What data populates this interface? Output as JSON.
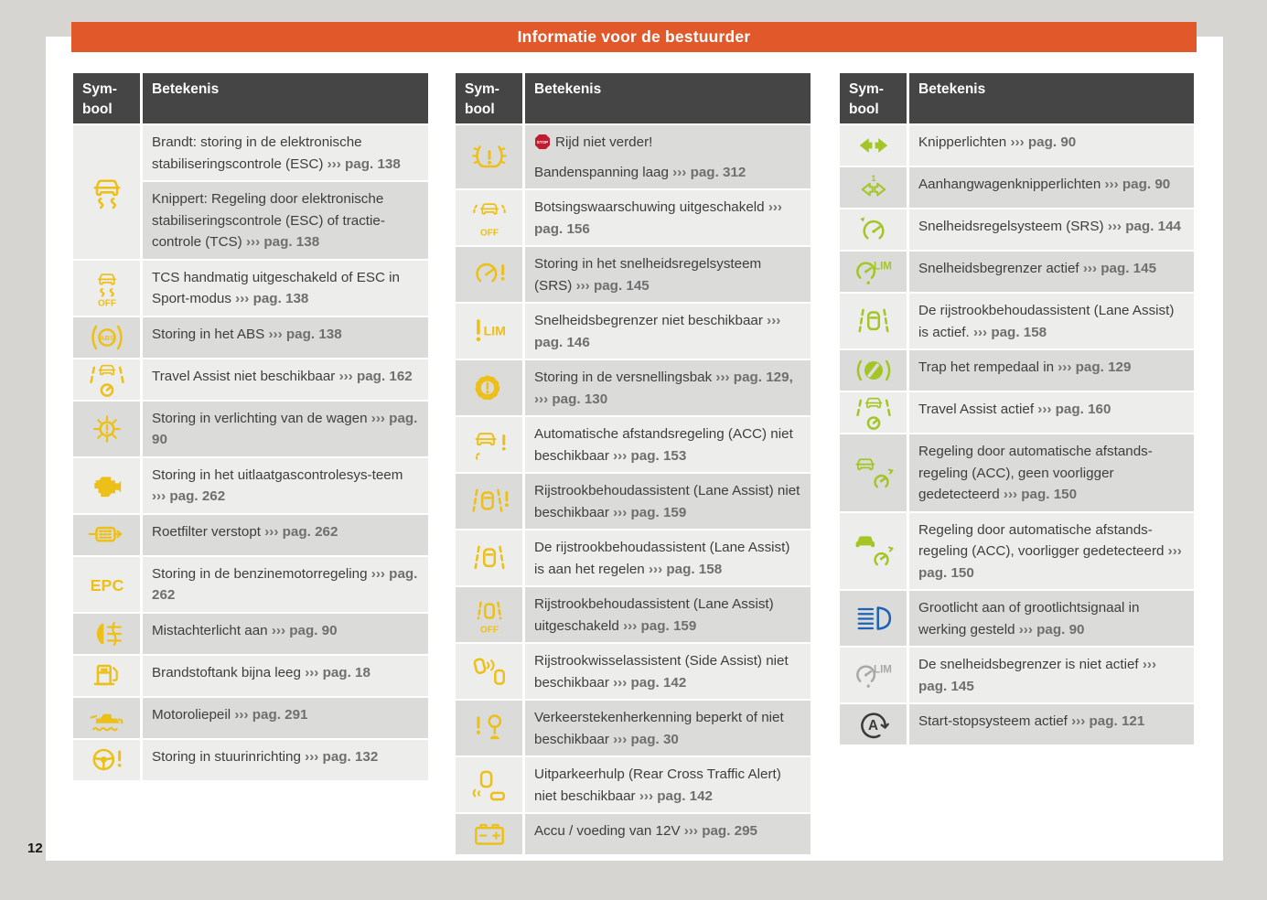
{
  "page_number": "12",
  "stop_badge": "STOP",
  "header": {
    "title": "Informatie voor de bestuurder"
  },
  "table_header": {
    "symbol": "Sym-bool",
    "meaning": "Betekenis"
  },
  "colors": {
    "orange": "#E1592B",
    "header_dark": "#454545",
    "row_light": "#EDEDEB",
    "row_dark": "#DBDBD9",
    "yellow": "#EDC019",
    "green": "#A3C626",
    "blue": "#1C63B7",
    "gray": "#A8A8A6",
    "dark": "#3A3A3A",
    "stop_red": "#C21B2F",
    "text": "#3E3E3E",
    "ref": "#6F6F6F",
    "page_bg": "#D6D5D2"
  },
  "columns": [
    {
      "rows": [
        {
          "icon": "esc-warning-icon",
          "color": "yellow",
          "shade": "l",
          "cells": [
            {
              "shade": "l",
              "parts": [
                {
                  "t": "Brandt: storing in de elektronische stabiliseringscontrole (ESC) "
                },
                {
                  "t": "››› pag. 138",
                  "b": 1
                }
              ]
            },
            {
              "shade": "d",
              "parts": [
                {
                  "t": "Knippert: Regeling door elektronische stabiliseringscontrole (ESC) of tractie-controle (TCS) "
                },
                {
                  "t": "››› pag. 138",
                  "b": 1
                }
              ]
            }
          ]
        },
        {
          "icon": "esc-off-icon",
          "color": "yellow",
          "shade": "l",
          "cells": [
            {
              "shade": "l",
              "parts": [
                {
                  "t": "TCS handmatig uitgeschakeld of ESC in Sport-modus "
                },
                {
                  "t": "››› pag. 138",
                  "b": 1
                }
              ]
            }
          ]
        },
        {
          "icon": "abs-warning-icon",
          "color": "yellow",
          "shade": "d",
          "cells": [
            {
              "shade": "d",
              "parts": [
                {
                  "t": "Storing in het ABS "
                },
                {
                  "t": "››› pag. 138",
                  "b": 1
                }
              ]
            }
          ]
        },
        {
          "icon": "travel-assist-warning-icon",
          "color": "yellow",
          "shade": "l",
          "cells": [
            {
              "shade": "l",
              "parts": [
                {
                  "t": "Travel Assist niet beschikbaar "
                },
                {
                  "t": "››› pag. 162",
                  "b": 1
                }
              ]
            }
          ]
        },
        {
          "icon": "light-fault-icon",
          "color": "yellow",
          "shade": "d",
          "cells": [
            {
              "shade": "d",
              "parts": [
                {
                  "t": "Storing in verlichting van de wagen "
                },
                {
                  "t": "››› pag. 90",
                  "b": 1
                }
              ]
            }
          ]
        },
        {
          "icon": "check-engine-icon",
          "color": "yellow",
          "shade": "l",
          "cells": [
            {
              "shade": "l",
              "parts": [
                {
                  "t": "Storing in het uitlaatgascontrolesys-teem "
                },
                {
                  "t": "››› pag. 262",
                  "b": 1
                }
              ]
            }
          ]
        },
        {
          "icon": "particulate-filter-icon",
          "color": "yellow",
          "shade": "d",
          "cells": [
            {
              "shade": "d",
              "parts": [
                {
                  "t": "Roetfilter verstopt "
                },
                {
                  "t": "››› pag. 262",
                  "b": 1
                }
              ]
            }
          ]
        },
        {
          "icon": "epc-icon",
          "color": "yellow",
          "shade": "l",
          "cells": [
            {
              "shade": "l",
              "parts": [
                {
                  "t": "Storing in de benzinemotorregeling "
                },
                {
                  "t": "››› pag. 262",
                  "b": 1
                }
              ]
            }
          ]
        },
        {
          "icon": "rear-fog-light-icon",
          "color": "yellow",
          "shade": "d",
          "cells": [
            {
              "shade": "d",
              "parts": [
                {
                  "t": "Mistachterlicht aan "
                },
                {
                  "t": "››› pag. 90",
                  "b": 1
                }
              ]
            }
          ]
        },
        {
          "icon": "fuel-low-icon",
          "color": "yellow",
          "shade": "l",
          "cells": [
            {
              "shade": "l",
              "parts": [
                {
                  "t": "Brandstoftank bijna leeg "
                },
                {
                  "t": "››› pag. 18",
                  "b": 1
                }
              ]
            }
          ]
        },
        {
          "icon": "engine-oil-icon",
          "color": "yellow",
          "shade": "d",
          "cells": [
            {
              "shade": "d",
              "parts": [
                {
                  "t": "Motoroliepeil "
                },
                {
                  "t": "››› pag. 291",
                  "b": 1
                }
              ]
            }
          ]
        },
        {
          "icon": "steering-fault-icon",
          "color": "yellow",
          "shade": "l",
          "cells": [
            {
              "shade": "l",
              "parts": [
                {
                  "t": "Storing in stuurinrichting "
                },
                {
                  "t": "››› pag. 132",
                  "b": 1
                }
              ]
            }
          ]
        }
      ]
    },
    {
      "rows": [
        {
          "icon": "tpms-icon",
          "color": "yellow",
          "shade": "d",
          "cells": [
            {
              "shade": "d",
              "parts": [
                {
                  "stop": 1
                },
                {
                  "t": "Rijd niet verder!"
                },
                {
                  "nl": 1
                },
                {
                  "t": "Bandenspanning laag "
                },
                {
                  "t": "››› pag. 312",
                  "b": 1
                }
              ]
            }
          ]
        },
        {
          "icon": "collision-warning-off-icon",
          "color": "yellow",
          "shade": "l",
          "cells": [
            {
              "shade": "l",
              "parts": [
                {
                  "t": "Botsingswaarschuwing uitgeschakeld "
                },
                {
                  "t": "››› pag. 156",
                  "b": 1
                }
              ]
            }
          ]
        },
        {
          "icon": "cruise-fault-icon",
          "color": "yellow",
          "shade": "d",
          "cells": [
            {
              "shade": "d",
              "parts": [
                {
                  "t": "Storing in het snelheidsregelsysteem (SRS) "
                },
                {
                  "t": "››› pag. 145",
                  "b": 1
                }
              ]
            }
          ]
        },
        {
          "icon": "speed-limiter-warning-icon",
          "color": "yellow",
          "shade": "l",
          "cells": [
            {
              "shade": "l",
              "parts": [
                {
                  "t": "Snelheidsbegrenzer niet beschikbaar "
                },
                {
                  "t": "››› pag. 146",
                  "b": 1
                }
              ]
            }
          ]
        },
        {
          "icon": "gearbox-fault-icon",
          "color": "yellow",
          "shade": "d",
          "cells": [
            {
              "shade": "d",
              "parts": [
                {
                  "t": "Storing in de versnellingsbak "
                },
                {
                  "t": "››› pag. 129, ››› pag. 130",
                  "b": 1
                }
              ]
            }
          ]
        },
        {
          "icon": "acc-fault-icon",
          "color": "yellow",
          "shade": "l",
          "cells": [
            {
              "shade": "l",
              "parts": [
                {
                  "t": "Automatische afstandsregeling (ACC) niet beschikbaar "
                },
                {
                  "t": "››› pag. 153",
                  "b": 1
                }
              ]
            }
          ]
        },
        {
          "icon": "lane-assist-fault-icon",
          "color": "yellow",
          "shade": "d",
          "cells": [
            {
              "shade": "d",
              "parts": [
                {
                  "t": "Rijstrookbehoudassistent (Lane Assist) niet beschikbaar "
                },
                {
                  "t": "››› pag. 159",
                  "b": 1
                }
              ]
            }
          ]
        },
        {
          "icon": "lane-assist-regulating-icon",
          "color": "yellow",
          "shade": "l",
          "cells": [
            {
              "shade": "l",
              "parts": [
                {
                  "t": "De rijstrookbehoudassistent (Lane Assist) is aan het regelen "
                },
                {
                  "t": "››› pag. 158",
                  "b": 1
                }
              ]
            }
          ]
        },
        {
          "icon": "lane-assist-off-icon",
          "color": "yellow",
          "shade": "d",
          "cells": [
            {
              "shade": "d",
              "parts": [
                {
                  "t": "Rijstrookbehoudassistent (Lane Assist) uitgeschakeld "
                },
                {
                  "t": "››› pag. 159",
                  "b": 1
                }
              ]
            }
          ]
        },
        {
          "icon": "side-assist-icon",
          "color": "yellow",
          "shade": "l",
          "cells": [
            {
              "shade": "l",
              "parts": [
                {
                  "t": "Rijstrookwisselassistent (Side Assist) niet beschikbaar "
                },
                {
                  "t": "››› pag. 142",
                  "b": 1
                }
              ]
            }
          ]
        },
        {
          "icon": "traffic-sign-recognition-icon",
          "color": "yellow",
          "shade": "d",
          "cells": [
            {
              "shade": "d",
              "parts": [
                {
                  "t": "Verkeerstekenherkenning beperkt of niet beschikbaar "
                },
                {
                  "t": "››› pag. 30",
                  "b": 1
                }
              ]
            }
          ]
        },
        {
          "icon": "rear-cross-traffic-icon",
          "color": "yellow",
          "shade": "l",
          "cells": [
            {
              "shade": "l",
              "parts": [
                {
                  "t": "Uitparkeerhulp (Rear Cross Traffic Alert) niet beschikbaar "
                },
                {
                  "t": "››› pag. 142",
                  "b": 1
                }
              ]
            }
          ]
        },
        {
          "icon": "battery-icon",
          "color": "yellow",
          "shade": "d",
          "cells": [
            {
              "shade": "d",
              "parts": [
                {
                  "t": "Accu / voeding van 12V "
                },
                {
                  "t": "››› pag. 295",
                  "b": 1
                }
              ]
            }
          ]
        }
      ]
    },
    {
      "rows": [
        {
          "icon": "turn-signals-icon",
          "color": "green",
          "shade": "l",
          "cells": [
            {
              "shade": "l",
              "parts": [
                {
                  "t": "Knipperlichten "
                },
                {
                  "t": "››› pag. 90",
                  "b": 1
                }
              ]
            }
          ]
        },
        {
          "icon": "trailer-turn-signals-icon",
          "color": "green",
          "shade": "d",
          "cells": [
            {
              "shade": "d",
              "parts": [
                {
                  "t": "Aanhangwagenknipperlichten "
                },
                {
                  "t": "››› pag. 90",
                  "b": 1
                }
              ]
            }
          ]
        },
        {
          "icon": "cruise-control-icon",
          "color": "green",
          "shade": "l",
          "cells": [
            {
              "shade": "l",
              "parts": [
                {
                  "t": "Snelheidsregelsysteem (SRS) "
                },
                {
                  "t": "››› pag. 144",
                  "b": 1
                }
              ]
            }
          ]
        },
        {
          "icon": "speed-limiter-active-icon",
          "color": "green",
          "shade": "d",
          "cells": [
            {
              "shade": "d",
              "parts": [
                {
                  "t": "Snelheidsbegrenzer actief "
                },
                {
                  "t": "››› pag. 145",
                  "b": 1
                }
              ]
            }
          ]
        },
        {
          "icon": "lane-assist-active-icon",
          "color": "green",
          "shade": "l",
          "cells": [
            {
              "shade": "l",
              "parts": [
                {
                  "t": "De rijstrookbehoudassistent (Lane Assist) is actief. "
                },
                {
                  "t": "››› pag. 158",
                  "b": 1
                }
              ]
            }
          ]
        },
        {
          "icon": "brake-pedal-icon",
          "color": "green",
          "shade": "d",
          "cells": [
            {
              "shade": "d",
              "parts": [
                {
                  "t": "Trap het rempedaal in "
                },
                {
                  "t": "››› pag. 129",
                  "b": 1
                }
              ]
            }
          ]
        },
        {
          "icon": "travel-assist-active-icon",
          "color": "green",
          "shade": "l",
          "cells": [
            {
              "shade": "l",
              "parts": [
                {
                  "t": "Travel Assist actief "
                },
                {
                  "t": "››› pag. 160",
                  "b": 1
                }
              ]
            }
          ]
        },
        {
          "icon": "acc-no-vehicle-icon",
          "color": "green",
          "shade": "d",
          "cells": [
            {
              "shade": "d",
              "parts": [
                {
                  "t": "Regeling door automatische afstands-regeling (ACC), geen voorligger gedetecteerd "
                },
                {
                  "t": "››› pag. 150",
                  "b": 1
                }
              ]
            }
          ]
        },
        {
          "icon": "acc-vehicle-icon",
          "color": "green",
          "shade": "l",
          "cells": [
            {
              "shade": "l",
              "parts": [
                {
                  "t": "Regeling door automatische afstands-regeling (ACC), voorligger gedetecteerd "
                },
                {
                  "t": "››› pag. 150",
                  "b": 1
                }
              ]
            }
          ]
        },
        {
          "icon": "high-beam-icon",
          "color": "blue",
          "shade": "d",
          "cells": [
            {
              "shade": "d",
              "parts": [
                {
                  "t": "Grootlicht aan of grootlichtsignaal in werking gesteld "
                },
                {
                  "t": "››› pag. 90",
                  "b": 1
                }
              ]
            }
          ]
        },
        {
          "icon": "speed-limiter-inactive-icon",
          "color": "gray",
          "shade": "l",
          "cells": [
            {
              "shade": "l",
              "parts": [
                {
                  "t": "De snelheidsbegrenzer is niet actief "
                },
                {
                  "t": "››› pag. 145",
                  "b": 1
                }
              ]
            }
          ]
        },
        {
          "icon": "start-stop-icon",
          "color": "dark",
          "shade": "d",
          "cells": [
            {
              "shade": "d",
              "parts": [
                {
                  "t": "Start-stopsysteem actief "
                },
                {
                  "t": "››› pag. 121",
                  "b": 1
                }
              ]
            }
          ]
        }
      ]
    }
  ]
}
